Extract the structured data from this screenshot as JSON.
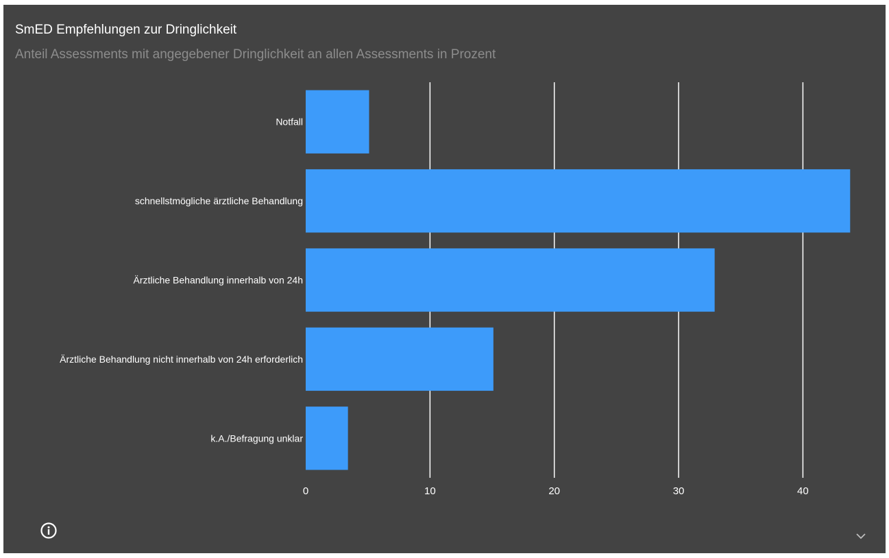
{
  "widget": {
    "title": "SmED Empfehlungen zur Dringlichkeit",
    "subtitle": "Anteil Assessments mit angegebener Dringlichkeit an allen Assessments in Prozent",
    "info_icon": "info-circle-icon",
    "expand_icon": "chevron-down-icon",
    "background_color": "#434343"
  },
  "chart_data": {
    "type": "bar",
    "orientation": "horizontal",
    "categories": [
      "Notfall",
      "schnellstmögliche ärztliche Behandlung",
      "Ärztliche Behandlung innerhalb von 24h",
      "Ärztliche Behandlung nicht innerhalb von 24h erforderlich",
      "k.A./Befragung unklar"
    ],
    "values": [
      5.1,
      43.8,
      32.9,
      15.1,
      3.4
    ],
    "xticks": [
      0,
      10,
      20,
      30,
      40
    ],
    "xlim": [
      0,
      44.5
    ],
    "grid": true,
    "bar_color": "#3d9bfa",
    "grid_color": "#ffffff"
  }
}
